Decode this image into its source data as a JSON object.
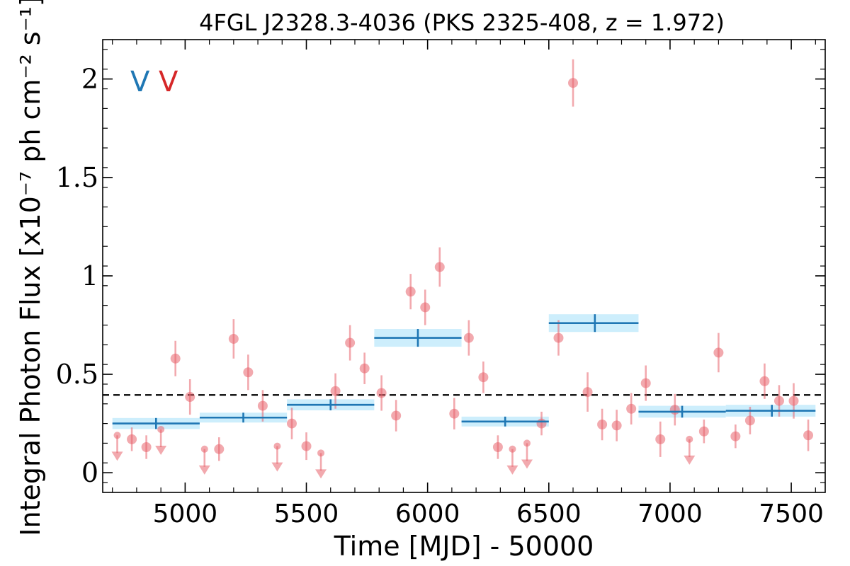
{
  "chart_data": {
    "type": "scatter",
    "title": "4FGL J2328.3-4036 (PKS 2325-408, z = 1.972)",
    "xlabel": "Time [MJD] - 50000",
    "ylabel": "Integral Photon Flux [x10⁻⁷ ph cm⁻² s⁻¹]",
    "xlim": [
      4660,
      7640
    ],
    "ylim": [
      -0.1,
      2.2
    ],
    "xticks": [
      5000,
      5500,
      6000,
      6500,
      7000,
      7500
    ],
    "xtick_labels": [
      "5000",
      "5500",
      "6000",
      "6500",
      "7000",
      "7500"
    ],
    "yticks": [
      0,
      0.5,
      1,
      1.5,
      2
    ],
    "ytick_labels": [
      "0",
      "0.5",
      "1",
      "1.5",
      "2"
    ],
    "reference_line": 0.395,
    "legend": {
      "placement": "top-left",
      "entries": [
        {
          "label": "V",
          "color": "#1f77b4"
        },
        {
          "label": "V",
          "color": "#d62728"
        }
      ]
    },
    "colors": {
      "blue": "#1f77b4",
      "red": "#e8636c",
      "band": "#cdeefc"
    },
    "series": [
      {
        "kind": "binned",
        "points": [
          {
            "x0": 4700,
            "x1": 5060,
            "x": 4880,
            "y": 0.25,
            "err": 0.028
          },
          {
            "x0": 5060,
            "x1": 5420,
            "x": 5240,
            "y": 0.28,
            "err": 0.025
          },
          {
            "x0": 5420,
            "x1": 5780,
            "x": 5600,
            "y": 0.345,
            "err": 0.028
          },
          {
            "x0": 5780,
            "x1": 6140,
            "x": 5960,
            "y": 0.685,
            "err": 0.045
          },
          {
            "x0": 6140,
            "x1": 6500,
            "x": 6320,
            "y": 0.26,
            "err": 0.025
          },
          {
            "x0": 6500,
            "x1": 6870,
            "x": 6690,
            "y": 0.76,
            "err": 0.045
          },
          {
            "x0": 6870,
            "x1": 7230,
            "x": 7050,
            "y": 0.31,
            "err": 0.03
          },
          {
            "x0": 7230,
            "x1": 7600,
            "x": 7420,
            "y": 0.315,
            "err": 0.03
          }
        ]
      },
      {
        "kind": "short-bin",
        "points": [
          {
            "x": 4720,
            "y": 0.19,
            "err": 0.05,
            "ul": true
          },
          {
            "x": 4780,
            "y": 0.17,
            "err": 0.06,
            "ul": false
          },
          {
            "x": 4840,
            "y": 0.13,
            "err": 0.06,
            "ul": false
          },
          {
            "x": 4900,
            "y": 0.22,
            "err": 0.05,
            "ul": true
          },
          {
            "x": 4960,
            "y": 0.58,
            "err": 0.09,
            "ul": false
          },
          {
            "x": 5020,
            "y": 0.385,
            "err": 0.09,
            "ul": false
          },
          {
            "x": 5080,
            "y": 0.12,
            "err": 0.04,
            "ul": true
          },
          {
            "x": 5140,
            "y": 0.12,
            "err": 0.06,
            "ul": false
          },
          {
            "x": 5200,
            "y": 0.68,
            "err": 0.1,
            "ul": false
          },
          {
            "x": 5260,
            "y": 0.51,
            "err": 0.09,
            "ul": false
          },
          {
            "x": 5320,
            "y": 0.34,
            "err": 0.08,
            "ul": false
          },
          {
            "x": 5380,
            "y": 0.135,
            "err": 0.04,
            "ul": true
          },
          {
            "x": 5440,
            "y": 0.25,
            "err": 0.08,
            "ul": false
          },
          {
            "x": 5500,
            "y": 0.135,
            "err": 0.07,
            "ul": false
          },
          {
            "x": 5560,
            "y": 0.1,
            "err": 0.04,
            "ul": true
          },
          {
            "x": 5620,
            "y": 0.415,
            "err": 0.09,
            "ul": false
          },
          {
            "x": 5680,
            "y": 0.66,
            "err": 0.09,
            "ul": false
          },
          {
            "x": 5740,
            "y": 0.53,
            "err": 0.08,
            "ul": false
          },
          {
            "x": 5810,
            "y": 0.405,
            "err": 0.09,
            "ul": false
          },
          {
            "x": 5870,
            "y": 0.29,
            "err": 0.08,
            "ul": false
          },
          {
            "x": 5930,
            "y": 0.92,
            "err": 0.09,
            "ul": false
          },
          {
            "x": 5990,
            "y": 0.84,
            "err": 0.09,
            "ul": false
          },
          {
            "x": 6050,
            "y": 1.045,
            "err": 0.1,
            "ul": false
          },
          {
            "x": 6110,
            "y": 0.3,
            "err": 0.08,
            "ul": false
          },
          {
            "x": 6170,
            "y": 0.685,
            "err": 0.09,
            "ul": false
          },
          {
            "x": 6230,
            "y": 0.485,
            "err": 0.08,
            "ul": false
          },
          {
            "x": 6290,
            "y": 0.13,
            "err": 0.06,
            "ul": false
          },
          {
            "x": 6350,
            "y": 0.12,
            "err": 0.04,
            "ul": true
          },
          {
            "x": 6410,
            "y": 0.15,
            "err": 0.04,
            "ul": true
          },
          {
            "x": 6470,
            "y": 0.25,
            "err": 0.06,
            "ul": false
          },
          {
            "x": 6540,
            "y": 0.685,
            "err": 0.09,
            "ul": false
          },
          {
            "x": 6600,
            "y": 1.98,
            "err": 0.12,
            "ul": false
          },
          {
            "x": 6660,
            "y": 0.41,
            "err": 0.1,
            "ul": false
          },
          {
            "x": 6720,
            "y": 0.245,
            "err": 0.08,
            "ul": false
          },
          {
            "x": 6780,
            "y": 0.24,
            "err": 0.08,
            "ul": false
          },
          {
            "x": 6840,
            "y": 0.325,
            "err": 0.08,
            "ul": false
          },
          {
            "x": 6900,
            "y": 0.455,
            "err": 0.09,
            "ul": false
          },
          {
            "x": 6960,
            "y": 0.17,
            "err": 0.09,
            "ul": false
          },
          {
            "x": 7020,
            "y": 0.32,
            "err": 0.08,
            "ul": false
          },
          {
            "x": 7080,
            "y": 0.17,
            "err": 0.04,
            "ul": true
          },
          {
            "x": 7140,
            "y": 0.21,
            "err": 0.06,
            "ul": false
          },
          {
            "x": 7200,
            "y": 0.61,
            "err": 0.1,
            "ul": false
          },
          {
            "x": 7270,
            "y": 0.185,
            "err": 0.06,
            "ul": false
          },
          {
            "x": 7330,
            "y": 0.265,
            "err": 0.07,
            "ul": false
          },
          {
            "x": 7390,
            "y": 0.465,
            "err": 0.09,
            "ul": false
          },
          {
            "x": 7450,
            "y": 0.365,
            "err": 0.08,
            "ul": false
          },
          {
            "x": 7510,
            "y": 0.365,
            "err": 0.09,
            "ul": false
          },
          {
            "x": 7570,
            "y": 0.19,
            "err": 0.08,
            "ul": false
          }
        ]
      }
    ]
  }
}
